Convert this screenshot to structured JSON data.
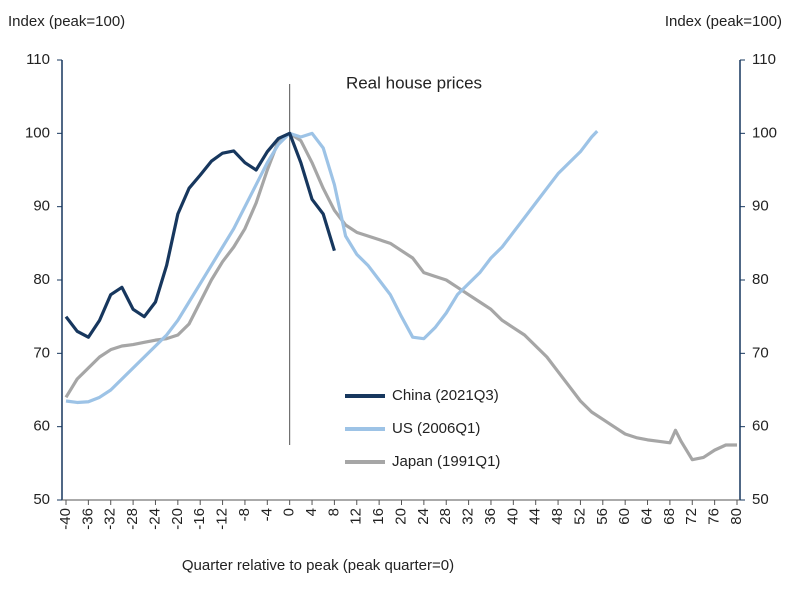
{
  "chart_data": {
    "type": "line",
    "title": "Real house prices",
    "y_label": "Index (peak=100)",
    "y2_label": "Index (peak=100)",
    "x_label": "Quarter relative to peak (peak quarter=0)",
    "xlim": [
      -40,
      80
    ],
    "xticks": [
      -40,
      -36,
      -32,
      -28,
      -24,
      -20,
      -16,
      -12,
      -8,
      -4,
      0,
      4,
      8,
      12,
      16,
      20,
      24,
      28,
      32,
      36,
      40,
      44,
      48,
      52,
      56,
      60,
      64,
      68,
      72,
      76,
      80
    ],
    "ylim": [
      50,
      110
    ],
    "yticks": [
      50,
      60,
      70,
      80,
      90,
      100,
      110
    ],
    "y2lim": [
      50,
      110
    ],
    "y2ticks": [
      50,
      60,
      70,
      80,
      90,
      100,
      110
    ],
    "series": [
      {
        "name": "China (2021Q3)",
        "color": "#17375e",
        "x": [
          -40,
          -38,
          -36,
          -34,
          -32,
          -30,
          -28,
          -26,
          -24,
          -22,
          -20,
          -18,
          -16,
          -14,
          -12,
          -10,
          -8,
          -6,
          -4,
          -2,
          0,
          2,
          4,
          6,
          8
        ],
        "values": [
          75,
          73,
          72.2,
          74.5,
          78,
          79,
          76,
          75,
          77,
          82,
          89,
          92.5,
          94.3,
          96.2,
          97.3,
          97.6,
          96,
          95,
          97.5,
          99.3,
          100,
          96,
          91,
          89,
          84
        ]
      },
      {
        "name": "US (2006Q1)",
        "color": "#9dc3e6",
        "x": [
          -40,
          -38,
          -36,
          -34,
          -32,
          -30,
          -28,
          -26,
          -24,
          -22,
          -20,
          -18,
          -16,
          -14,
          -12,
          -10,
          -8,
          -6,
          -4,
          -2,
          0,
          2,
          4,
          6,
          8,
          10,
          12,
          14,
          16,
          18,
          20,
          22,
          24,
          26,
          28,
          30,
          32,
          34,
          36,
          38,
          40,
          42,
          44,
          46,
          48,
          50,
          52,
          54,
          55
        ],
        "values": [
          63.5,
          63.3,
          63.4,
          64,
          65,
          66.5,
          68,
          69.5,
          71,
          72.5,
          74.5,
          77,
          79.5,
          82,
          84.5,
          87,
          90,
          93,
          96,
          98.5,
          100,
          99.5,
          100,
          98,
          93,
          86,
          83.5,
          82,
          80,
          78,
          75,
          72.2,
          72,
          73.5,
          75.5,
          78,
          79.5,
          81,
          83,
          84.5,
          86.5,
          88.5,
          90.5,
          92.5,
          94.5,
          96,
          97.5,
          99.5,
          100.3
        ]
      },
      {
        "name": "Japan (1991Q1)",
        "color": "#a6a6a6",
        "x": [
          -40,
          -38,
          -36,
          -34,
          -32,
          -30,
          -28,
          -26,
          -24,
          -22,
          -20,
          -18,
          -16,
          -14,
          -12,
          -10,
          -8,
          -6,
          -4,
          -2,
          0,
          2,
          4,
          6,
          8,
          10,
          12,
          14,
          16,
          18,
          20,
          22,
          24,
          26,
          28,
          30,
          32,
          34,
          36,
          38,
          40,
          42,
          44,
          46,
          48,
          50,
          52,
          54,
          56,
          58,
          60,
          62,
          64,
          66,
          68,
          69,
          70,
          72,
          74,
          76,
          78,
          80
        ],
        "values": [
          64,
          66.5,
          68,
          69.5,
          70.5,
          71,
          71.2,
          71.5,
          71.8,
          72,
          72.5,
          74,
          77,
          80,
          82.5,
          84.5,
          87,
          90.5,
          95,
          99,
          100,
          99,
          96,
          92.5,
          89.5,
          87.5,
          86.5,
          86,
          85.5,
          85,
          84,
          83,
          81,
          80.5,
          80,
          79,
          78,
          77,
          76,
          74.5,
          73.5,
          72.5,
          71,
          69.5,
          67.5,
          65.5,
          63.5,
          62,
          61,
          60,
          59,
          58.5,
          58.2,
          58,
          57.8,
          59.5,
          58,
          55.5,
          55.8,
          56.8,
          57.5,
          57.5
        ]
      }
    ]
  }
}
